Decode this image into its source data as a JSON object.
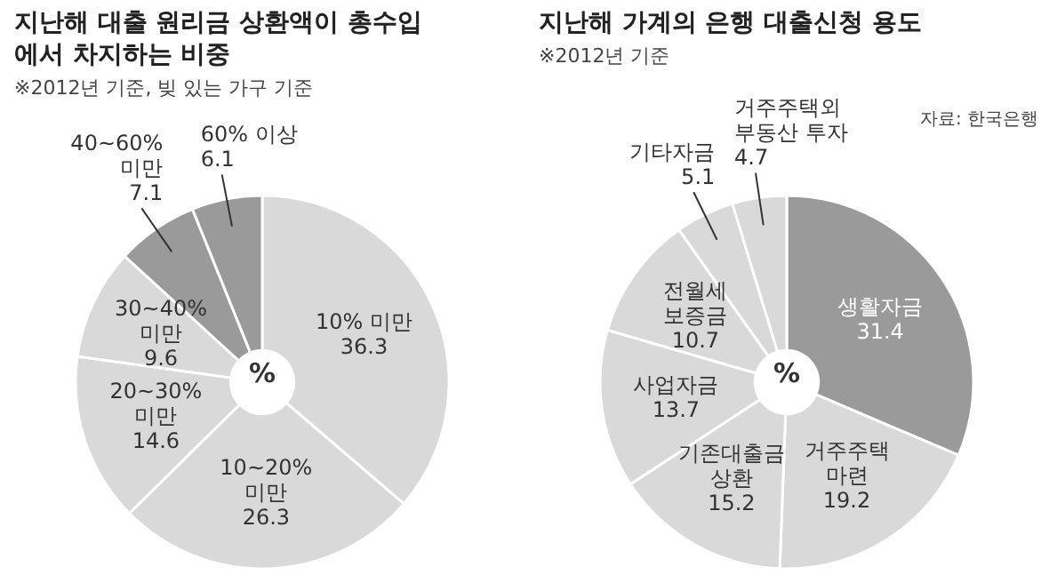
{
  "chart_data": [
    {
      "type": "donut",
      "title": "지난해 대출 원리금 상환액이 총수입에서 차지하는 비중",
      "subtitle": "※2012년 기준, 빚 있는 가구 기준",
      "categories": [
        "10% 미만",
        "10~20% 미만",
        "20~30% 미만",
        "30~40% 미만",
        "40~60% 미만",
        "60% 이상"
      ],
      "values": [
        36.3,
        26.3,
        14.6,
        9.6,
        7.1,
        6.1
      ],
      "colors": [
        "#d9d9d9",
        "#d9d9d9",
        "#d9d9d9",
        "#d9d9d9",
        "#9a9a9a",
        "#9a9a9a"
      ],
      "data_labels": true,
      "legend": false,
      "annotations": [
        "%"
      ]
    },
    {
      "type": "donut",
      "title": "지난해 가계의 은행 대출신청 용도",
      "subtitle": "※2012년 기준",
      "categories": [
        "생활자금",
        "거주주택 마련",
        "기존대출금 상환",
        "사업자금",
        "전월세 보증금",
        "기타자금",
        "거주주택외 부동산 투자"
      ],
      "values": [
        31.4,
        19.2,
        15.2,
        13.7,
        10.7,
        5.1,
        4.7
      ],
      "colors": [
        "#9a9a9a",
        "#d9d9d9",
        "#d9d9d9",
        "#d9d9d9",
        "#d9d9d9",
        "#d9d9d9",
        "#d9d9d9"
      ],
      "data_labels": true,
      "legend": false,
      "annotations": [
        "%",
        "자료: 한국은행"
      ]
    }
  ]
}
